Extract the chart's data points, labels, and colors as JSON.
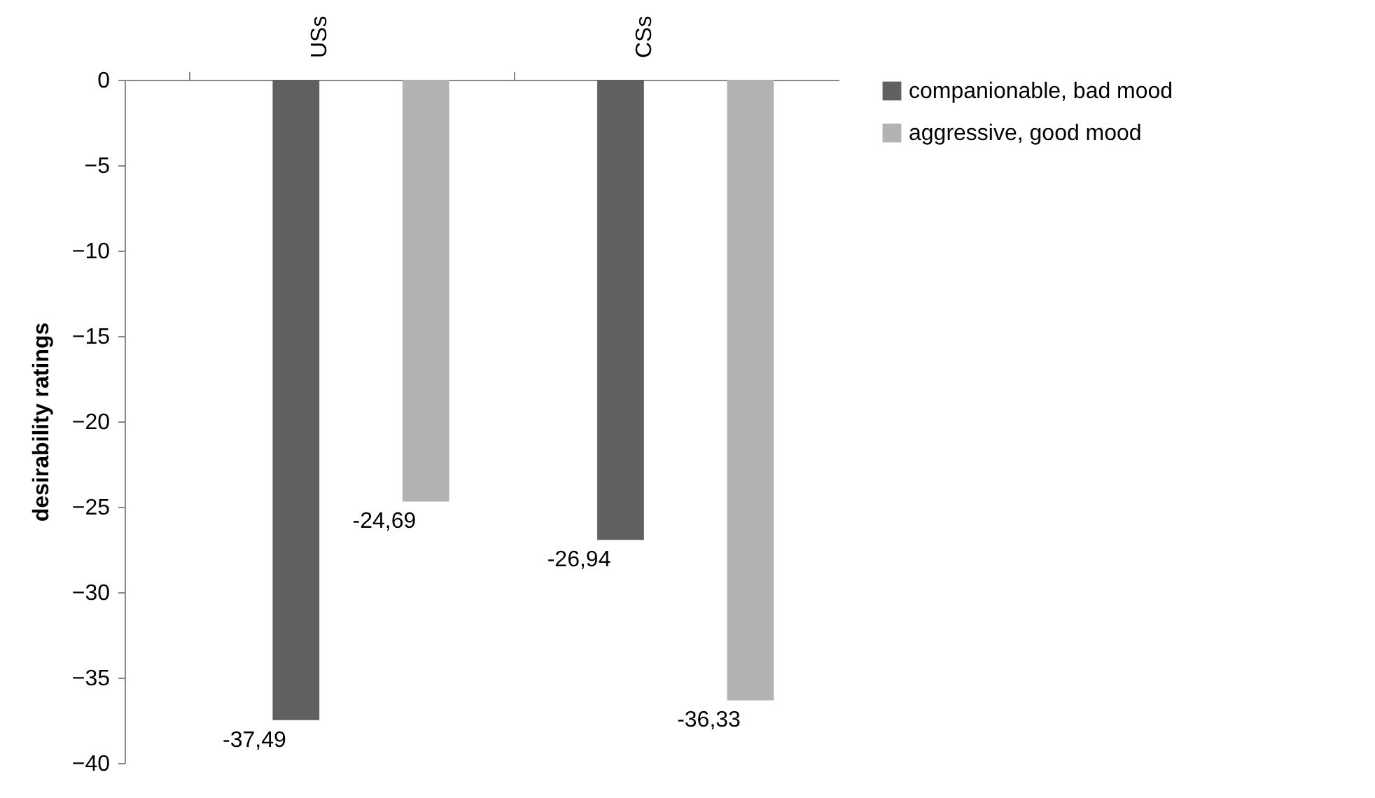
{
  "chart_data": {
    "type": "bar",
    "ylabel": "desirability ratings",
    "categories": [
      "USs",
      "CSs"
    ],
    "series": [
      {
        "name": "companionable, bad mood",
        "color": "#606060",
        "values": [
          -37.49,
          -26.94
        ],
        "value_labels": [
          "-37,49",
          "-26,94"
        ]
      },
      {
        "name": "aggressive, good mood",
        "color": "#b2b2b2",
        "values": [
          -24.69,
          -36.33
        ],
        "value_labels": [
          "-24,69",
          "-36,33"
        ]
      }
    ],
    "ylim": [
      -40,
      0
    ],
    "yticks": [
      0,
      -5,
      -10,
      -15,
      -20,
      -25,
      -30,
      -35,
      -40
    ],
    "grid": false,
    "legend": "right"
  }
}
